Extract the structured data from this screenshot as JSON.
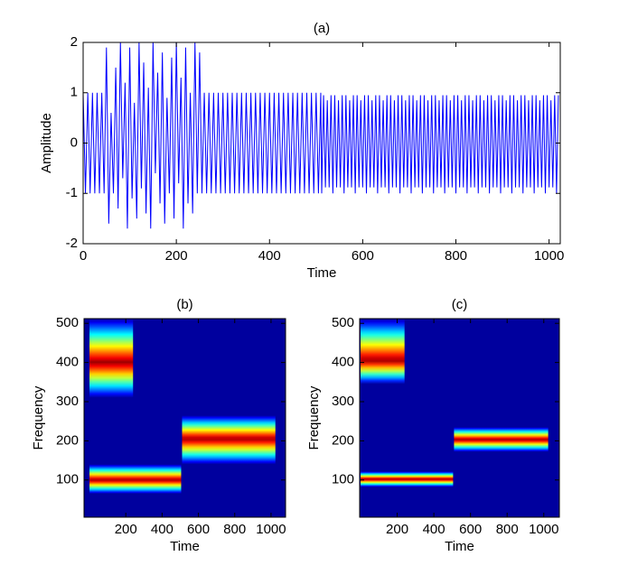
{
  "chart_data": [
    {
      "type": "line",
      "title": "(a)",
      "xlabel": "Time",
      "ylabel": "Amplitude",
      "color": "#0000ff",
      "xlim": [
        0,
        1024
      ],
      "ylim": [
        -2,
        2
      ],
      "xticks": [
        0,
        200,
        400,
        600,
        800,
        1000
      ],
      "yticks": [
        -2,
        -1,
        0,
        1,
        2
      ],
      "x": [
        0,
        5,
        10,
        15,
        20,
        25,
        30,
        35,
        40,
        45,
        50,
        55,
        60,
        65,
        70,
        75,
        80,
        85,
        90,
        95,
        100,
        105,
        110,
        115,
        120,
        125,
        130,
        135,
        140,
        145,
        150,
        155,
        160,
        165,
        170,
        175,
        180,
        185,
        190,
        195,
        200,
        205,
        210,
        215,
        220,
        225,
        230,
        235,
        240,
        245,
        250,
        255,
        260,
        265,
        270,
        275,
        280,
        285,
        290,
        295,
        300,
        305,
        310,
        315,
        320,
        325,
        330,
        335,
        340,
        345,
        350,
        355,
        360,
        365,
        370,
        375,
        380,
        385,
        390,
        395,
        400,
        405,
        410,
        415,
        420,
        425,
        430,
        435,
        440,
        445,
        450,
        455,
        460,
        465,
        470,
        475,
        480,
        485,
        490,
        495,
        500,
        505,
        510,
        512,
        516,
        520,
        524,
        528,
        532,
        536,
        540,
        544,
        548,
        552,
        556,
        560,
        564,
        568,
        572,
        576,
        580,
        584,
        588,
        592,
        596,
        600,
        604,
        608,
        612,
        616,
        620,
        624,
        628,
        632,
        636,
        640,
        644,
        648,
        652,
        656,
        660,
        664,
        668,
        672,
        676,
        680,
        684,
        688,
        692,
        696,
        700,
        704,
        708,
        712,
        716,
        720,
        724,
        728,
        732,
        736,
        740,
        744,
        748,
        752,
        756,
        760,
        764,
        768,
        772,
        776,
        780,
        784,
        788,
        792,
        796,
        800,
        804,
        808,
        812,
        816,
        820,
        824,
        828,
        832,
        836,
        840,
        844,
        848,
        852,
        856,
        860,
        864,
        868,
        872,
        876,
        880,
        884,
        888,
        892,
        896,
        900,
        904,
        908,
        912,
        916,
        920,
        924,
        928,
        932,
        936,
        940,
        944,
        948,
        952,
        956,
        960,
        964,
        968,
        972,
        976,
        980,
        984,
        988,
        992,
        996,
        1000,
        1004,
        1008,
        1012,
        1016,
        1020
      ],
      "values": [
        1,
        -1,
        1,
        -1,
        1,
        -1,
        1,
        -1,
        1,
        -1,
        1.9,
        -1.6,
        0.6,
        -1.0,
        1.5,
        -1.3,
        2.0,
        -0.7,
        1.2,
        -1.7,
        1.9,
        -1.1,
        0.8,
        -1.5,
        2.0,
        -0.9,
        1.6,
        -1.4,
        1.1,
        -1.7,
        2.0,
        -0.6,
        1.4,
        -1.2,
        1.8,
        -1.6,
        0.9,
        -1.0,
        1.7,
        -1.5,
        2.0,
        -0.8,
        1.3,
        -1.7,
        1.9,
        -1.2,
        1.0,
        -1.4,
        2.0,
        -1.0,
        1.8,
        -1,
        1,
        -1,
        1,
        -1,
        1,
        -1,
        1,
        -1,
        1,
        -1,
        1,
        -1,
        1,
        -1,
        1,
        -1,
        1,
        -1,
        1,
        -1,
        1,
        -1,
        1,
        -1,
        1,
        -1,
        1,
        -1,
        1,
        -1,
        1,
        -1,
        1,
        -1,
        1,
        -1,
        1,
        -1,
        1,
        -1,
        1,
        -1,
        1,
        -1,
        1,
        -1,
        1,
        -1,
        1,
        -1,
        1,
        -1,
        0.95,
        -0.88,
        0.85,
        -0.88,
        0.95,
        -1,
        0.95,
        -0.88,
        0.85,
        -0.88,
        0.95,
        -1,
        0.95,
        -0.88,
        0.85,
        -0.88,
        0.95,
        -1,
        0.95,
        -0.88,
        0.85,
        -0.88,
        0.95,
        -1,
        0.95,
        -0.88,
        0.85,
        -0.88,
        0.95,
        -1,
        0.95,
        -0.88,
        0.85,
        -0.88,
        0.95,
        -1,
        0.95,
        -0.88,
        0.85,
        -0.88,
        0.95,
        -1,
        0.95,
        -0.88,
        0.85,
        -0.88,
        0.95,
        -1,
        0.95,
        -0.88,
        0.85,
        -0.88,
        0.95,
        -1,
        0.95,
        -0.88,
        0.85,
        -0.88,
        0.95,
        -1,
        0.95,
        -0.88,
        0.85,
        -0.88,
        0.95,
        -1,
        0.95,
        -0.88,
        0.85,
        -0.88,
        0.95,
        -1,
        0.95,
        -0.88,
        0.85,
        -0.88,
        0.95,
        -1,
        0.95,
        -0.88,
        0.85,
        -0.88,
        0.95,
        -1,
        0.95,
        -0.88,
        0.85,
        -0.88,
        0.95,
        -1,
        0.95,
        -0.88,
        0.85,
        -0.88,
        0.95,
        -1,
        0.95,
        -0.88,
        0.85,
        -0.88,
        0.95,
        -1,
        0.95,
        -0.88,
        0.85,
        -0.88,
        0.95,
        -1,
        0.95,
        -0.88,
        0.85,
        -0.88,
        0.95,
        -1,
        0.95,
        -0.88,
        0.85,
        -0.88,
        0.95,
        -1,
        0.95,
        -0.88,
        0.85,
        -0.88,
        0.95,
        -1,
        0.95
      ]
    },
    {
      "type": "heatmap",
      "title": "(b)",
      "xlabel": "Time",
      "ylabel": "Frequency",
      "xlim": [
        -30,
        1080
      ],
      "ylim": [
        5,
        512
      ],
      "xticks": [
        200,
        400,
        600,
        800,
        1000
      ],
      "yticks": [
        100,
        200,
        300,
        400,
        500
      ],
      "bands": [
        {
          "xrange": [
            0,
            240
          ],
          "yrange": [
            310,
            512
          ],
          "peak": 400
        },
        {
          "xrange": [
            0,
            505
          ],
          "yrange": [
            65,
            140
          ],
          "peak": 100
        },
        {
          "xrange": [
            510,
            1024
          ],
          "yrange": [
            140,
            265
          ],
          "peak": 205
        }
      ]
    },
    {
      "type": "heatmap",
      "title": "(c)",
      "xlabel": "Time",
      "ylabel": "Frequency",
      "xlim": [
        -5,
        1085
      ],
      "ylim": [
        5,
        512
      ],
      "xticks": [
        200,
        400,
        600,
        800,
        1000
      ],
      "yticks": [
        100,
        200,
        300,
        400,
        500
      ],
      "bands": [
        {
          "xrange": [
            0,
            240
          ],
          "yrange": [
            345,
            512
          ],
          "peak": 405
        },
        {
          "xrange": [
            0,
            505
          ],
          "yrange": [
            82,
            122
          ],
          "peak": 102
        },
        {
          "xrange": [
            510,
            1024
          ],
          "yrange": [
            172,
            235
          ],
          "peak": 203
        }
      ]
    }
  ]
}
